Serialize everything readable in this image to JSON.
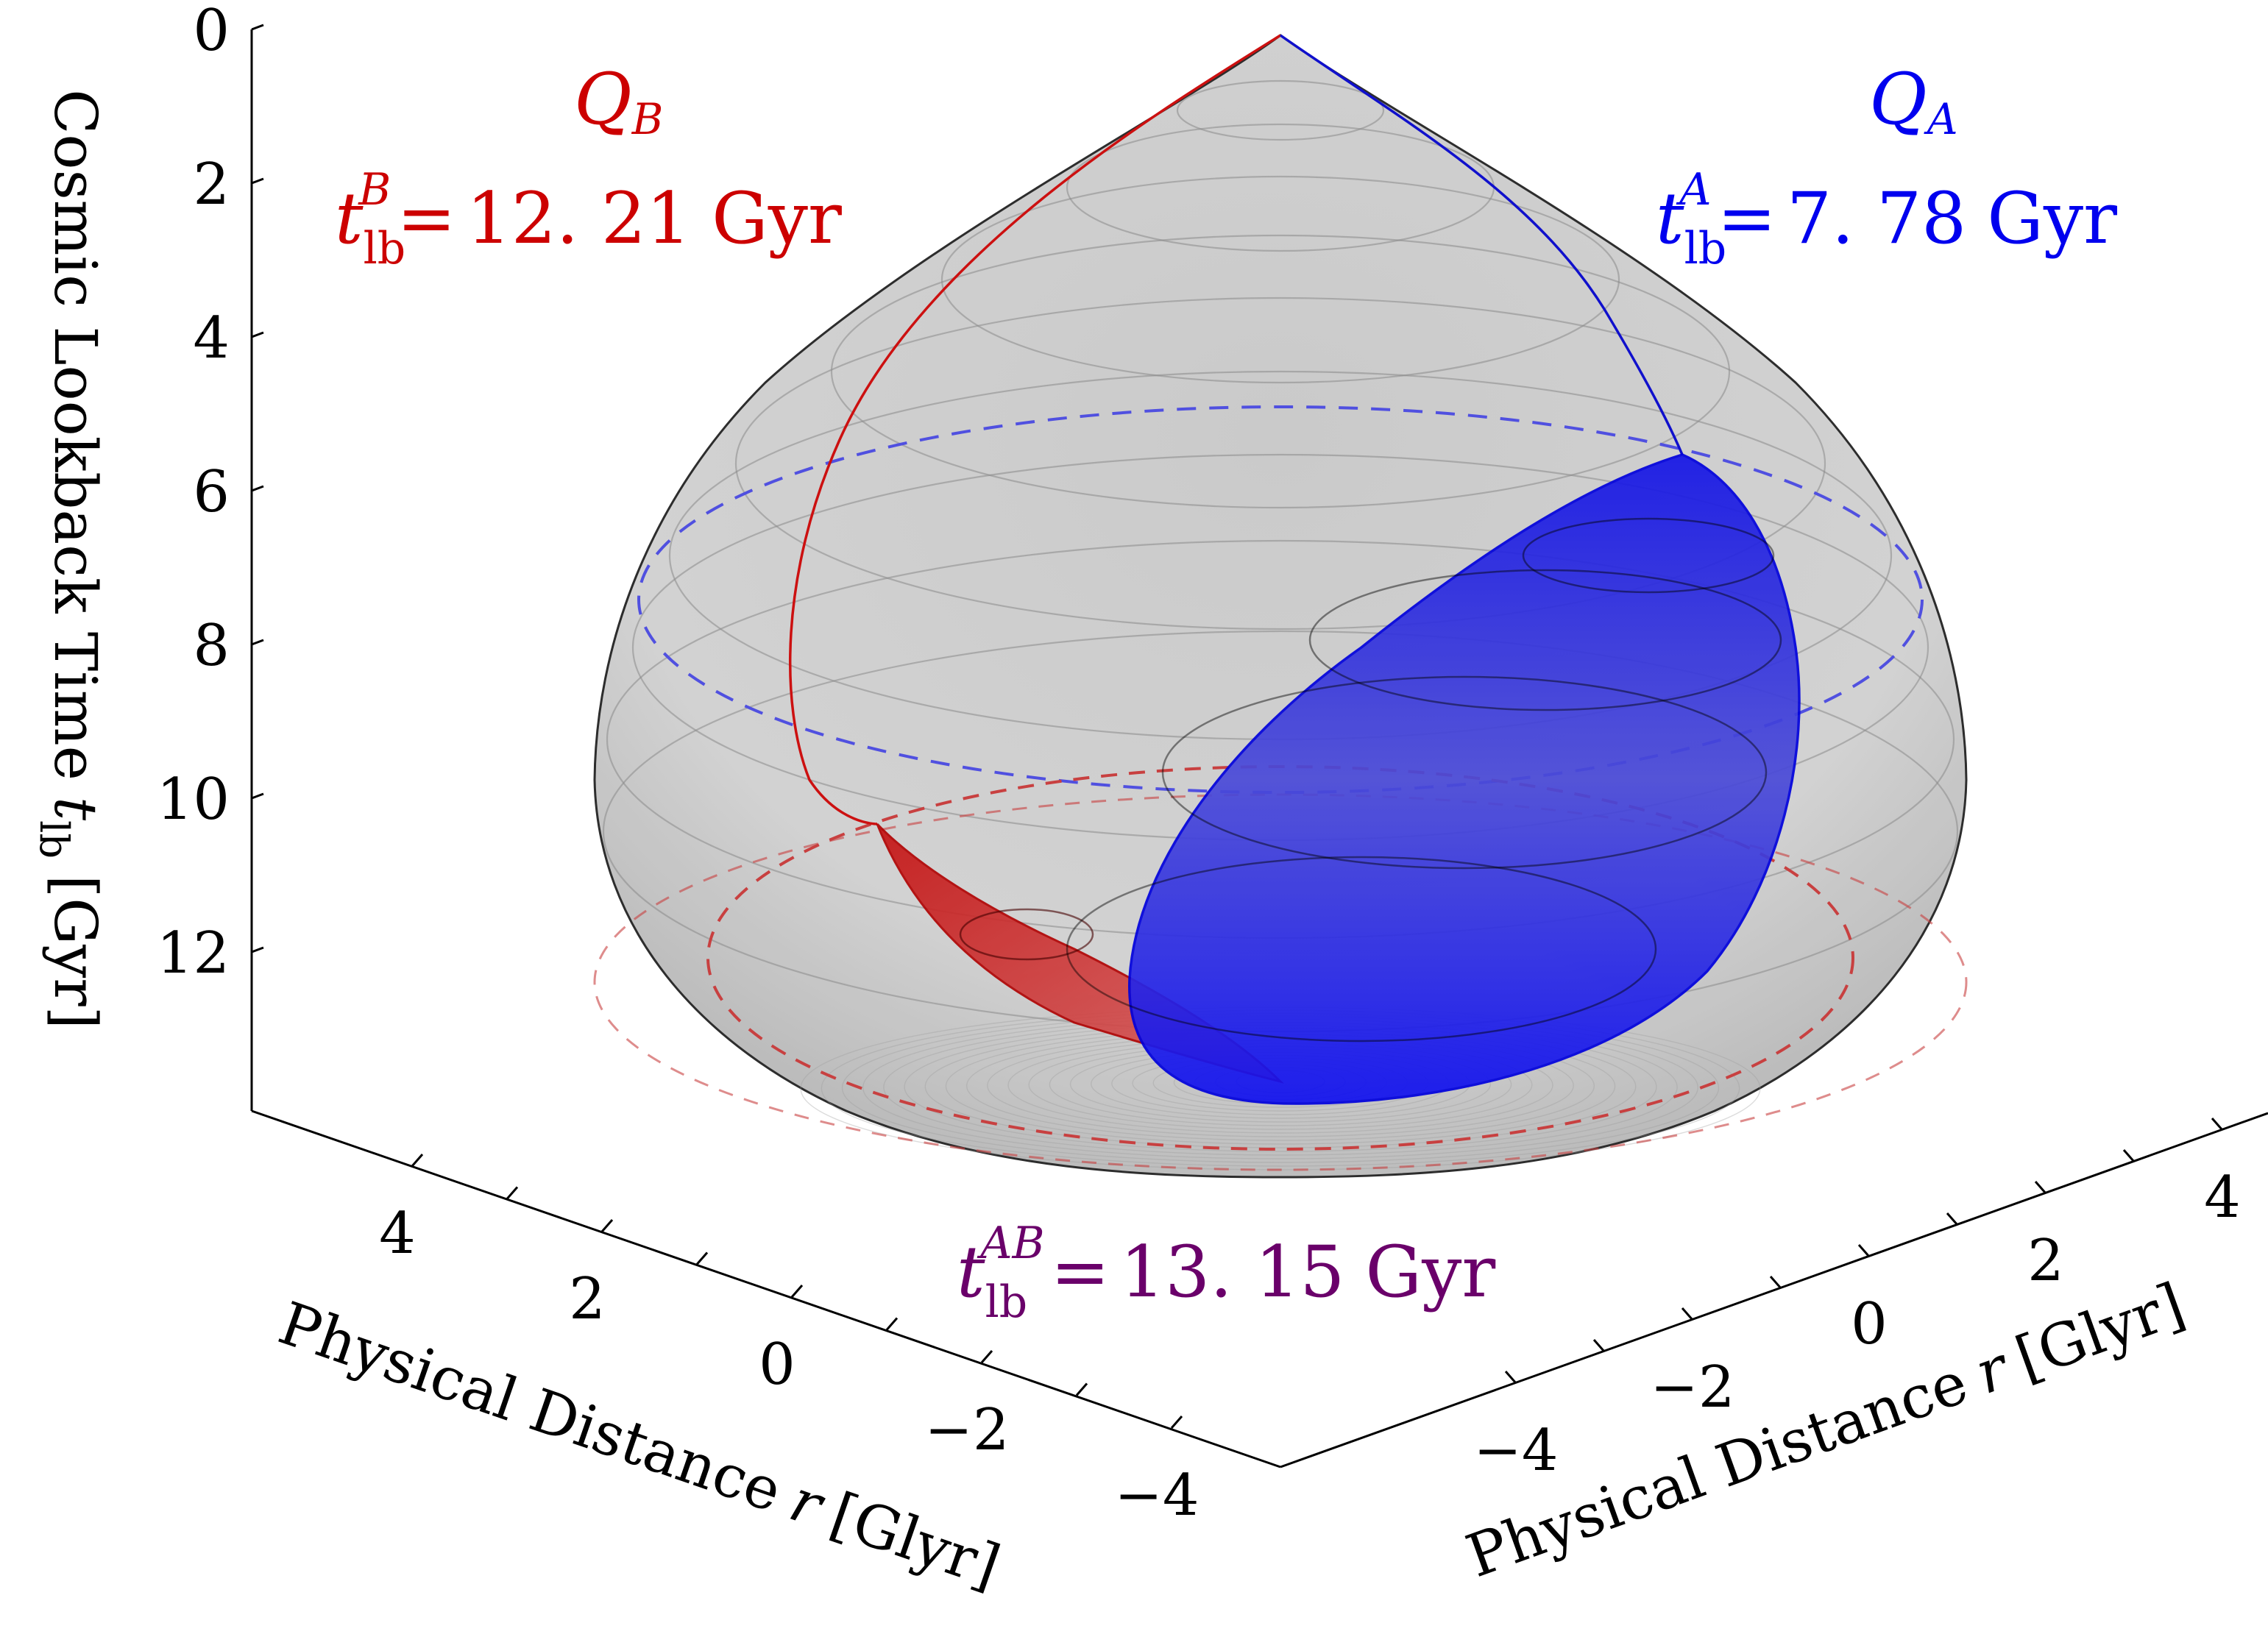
{
  "chart_data": {
    "type": "3d-surface",
    "title": "",
    "z_axis": {
      "label": "Cosmic Lookback Time",
      "symbol": "t",
      "subscript": "lb",
      "unit": "[Gyr]",
      "range": [
        0,
        13.8
      ],
      "ticks": [
        0,
        2,
        4,
        6,
        8,
        10,
        12
      ]
    },
    "x_axis_left": {
      "label": "Physical Distance",
      "symbol": "r",
      "unit": "[Glyr]",
      "range": [
        -5,
        5
      ],
      "tick_labels": [
        "4",
        "2",
        "0",
        "−2",
        "−4"
      ]
    },
    "x_axis_right": {
      "label": "Physical Distance",
      "symbol": "r",
      "unit": "[Glyr]",
      "range": [
        -5,
        5
      ],
      "tick_labels": [
        "−4",
        "−2",
        "0",
        "2",
        "4"
      ]
    },
    "surfaces": [
      {
        "name": "past light cone",
        "color": "#a0a0a0"
      },
      {
        "name": "Q_A past cone",
        "color": "#0000ee"
      },
      {
        "name": "Q_B past cone",
        "color": "#cc0000"
      }
    ],
    "annotations": {
      "qb": {
        "label": "Q",
        "sub": "B",
        "t_symbol": "t",
        "t_sub": "lb",
        "t_sup": "B",
        "eq": "=",
        "value": "12. 21",
        "unit": "Gyr",
        "value_gyr": 12.21,
        "color": "#cc0000"
      },
      "qa": {
        "label": "Q",
        "sub": "A",
        "t_symbol": "t",
        "t_sub": "lb",
        "t_sup": "A",
        "eq": "=",
        "value": "7. 78",
        "unit": "Gyr",
        "value_gyr": 7.78,
        "color": "#0000ee"
      },
      "qab": {
        "t_symbol": "t",
        "t_sub": "lb",
        "t_sup": "AB",
        "eq": "=",
        "value": "13. 15",
        "unit": "Gyr",
        "value_gyr": 13.15,
        "color": "#6a006a"
      }
    }
  }
}
